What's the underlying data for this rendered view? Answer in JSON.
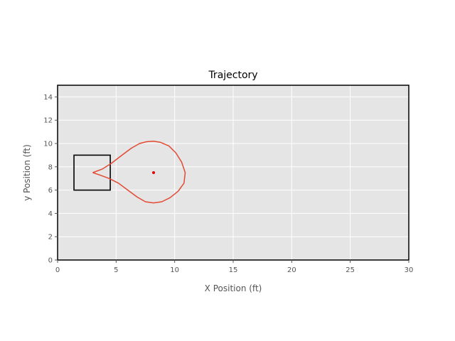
{
  "chart_data": {
    "type": "line",
    "title": "Trajectory",
    "xlabel": "X Position (ft)",
    "ylabel": "y Position (ft)",
    "xlim": [
      0,
      30
    ],
    "ylim": [
      0,
      15
    ],
    "xticks": [
      0,
      5,
      10,
      15,
      20,
      25,
      30
    ],
    "yticks": [
      0,
      2,
      4,
      6,
      8,
      10,
      12,
      14
    ],
    "grid": true,
    "colors": {
      "background": "#e5e5e5",
      "grid": "#ffffff",
      "frame": "#000000",
      "trajectory": "#e24a33",
      "marker": "#e00000",
      "box": "#000000"
    },
    "series": [
      {
        "x": [
          3.0,
          3.8,
          4.6,
          5.5,
          6.3,
          7.0,
          7.6,
          8.2,
          8.8,
          9.5,
          10.1,
          10.6,
          10.9,
          10.8,
          10.3,
          9.6,
          8.9,
          8.2,
          7.5,
          6.8,
          6.0,
          5.2,
          4.4,
          3.6,
          3.0
        ],
        "y": [
          7.5,
          7.8,
          8.3,
          9.0,
          9.6,
          10.0,
          10.15,
          10.2,
          10.1,
          9.8,
          9.2,
          8.4,
          7.5,
          6.6,
          5.9,
          5.35,
          5.0,
          4.9,
          5.0,
          5.4,
          6.0,
          6.6,
          7.0,
          7.3,
          7.5
        ]
      }
    ],
    "rectangle": {
      "x_min": 1.4,
      "x_max": 4.5,
      "y_min": 6.0,
      "y_max": 9.0
    },
    "marker_point": {
      "x": 8.2,
      "y": 7.5
    }
  }
}
